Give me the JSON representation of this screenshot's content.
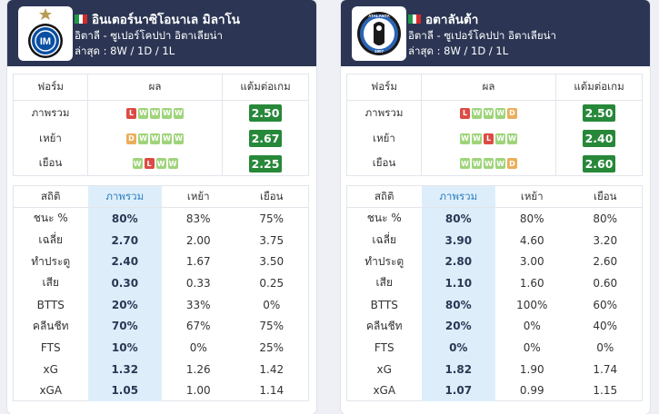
{
  "teams": [
    {
      "name": "อินเตอร์นาซิโอนาเล มิลาโน",
      "league": "อิตาลี - ซูเปอร์โคปปา อิตาเลียน่า",
      "latest": "ล่าสุด : 8W / 1D / 1L",
      "logo_icon": "inter-crest-icon",
      "form_headers": [
        "ฟอร์ม",
        "ผล",
        "แต้มต่อเกม"
      ],
      "form_rows": [
        {
          "label": "ภาพรวม",
          "results": [
            "L",
            "W",
            "W",
            "W",
            "W"
          ],
          "ppg": "2.50"
        },
        {
          "label": "เหย้า",
          "results": [
            "D",
            "W",
            "W",
            "W",
            "W"
          ],
          "ppg": "2.67"
        },
        {
          "label": "เยือน",
          "results": [
            "W",
            "L",
            "W",
            "W"
          ],
          "ppg": "2.25"
        }
      ],
      "stat_headers": [
        "สถิติ",
        "ภาพรวม",
        "เหย้า",
        "เยือน"
      ],
      "stat_rows": [
        {
          "label": "ชนะ %",
          "overall": "80%",
          "home": "83%",
          "away": "75%"
        },
        {
          "label": "เฉลี่ย",
          "overall": "2.70",
          "home": "2.00",
          "away": "3.75"
        },
        {
          "label": "ทำประตู",
          "overall": "2.40",
          "home": "1.67",
          "away": "3.50"
        },
        {
          "label": "เสีย",
          "overall": "0.30",
          "home": "0.33",
          "away": "0.25"
        },
        {
          "label": "BTTS",
          "overall": "20%",
          "home": "33%",
          "away": "0%"
        },
        {
          "label": "คลีนชีท",
          "overall": "70%",
          "home": "67%",
          "away": "75%"
        },
        {
          "label": "FTS",
          "overall": "10%",
          "home": "0%",
          "away": "25%"
        },
        {
          "label": "xG",
          "overall": "1.32",
          "home": "1.26",
          "away": "1.42"
        },
        {
          "label": "xGA",
          "overall": "1.05",
          "home": "1.00",
          "away": "1.14"
        }
      ]
    },
    {
      "name": "อตาลันต้า",
      "league": "อิตาลี - ซูเปอร์โคปปา อิตาเลียน่า",
      "latest": "ล่าสุด : 8W / 1D / 1L",
      "logo_icon": "atalanta-crest-icon",
      "form_headers": [
        "ฟอร์ม",
        "ผล",
        "แต้มต่อเกม"
      ],
      "form_rows": [
        {
          "label": "ภาพรวม",
          "results": [
            "L",
            "W",
            "W",
            "W",
            "D"
          ],
          "ppg": "2.50"
        },
        {
          "label": "เหย้า",
          "results": [
            "W",
            "W",
            "L",
            "W",
            "W"
          ],
          "ppg": "2.40"
        },
        {
          "label": "เยือน",
          "results": [
            "W",
            "W",
            "W",
            "W",
            "D"
          ],
          "ppg": "2.60"
        }
      ],
      "stat_headers": [
        "สถิติ",
        "ภาพรวม",
        "เหย้า",
        "เยือน"
      ],
      "stat_rows": [
        {
          "label": "ชนะ %",
          "overall": "80%",
          "home": "80%",
          "away": "80%"
        },
        {
          "label": "เฉลี่ย",
          "overall": "3.90",
          "home": "4.60",
          "away": "3.20"
        },
        {
          "label": "ทำประตู",
          "overall": "2.80",
          "home": "3.00",
          "away": "2.60"
        },
        {
          "label": "เสีย",
          "overall": "1.10",
          "home": "1.60",
          "away": "0.60"
        },
        {
          "label": "BTTS",
          "overall": "80%",
          "home": "100%",
          "away": "60%"
        },
        {
          "label": "คลีนชีท",
          "overall": "20%",
          "home": "0%",
          "away": "40%"
        },
        {
          "label": "FTS",
          "overall": "0%",
          "home": "0%",
          "away": "0%"
        },
        {
          "label": "xG",
          "overall": "1.82",
          "home": "1.90",
          "away": "1.74"
        },
        {
          "label": "xGA",
          "overall": "1.07",
          "home": "0.99",
          "away": "1.15"
        }
      ]
    }
  ],
  "colors": {
    "header_bg": "#2c3654",
    "win": "#9fd47b",
    "loss": "#dc4b45",
    "draw": "#eaae5a",
    "ppg_badge": "#27883a",
    "overall_column": "#ddeefa"
  }
}
